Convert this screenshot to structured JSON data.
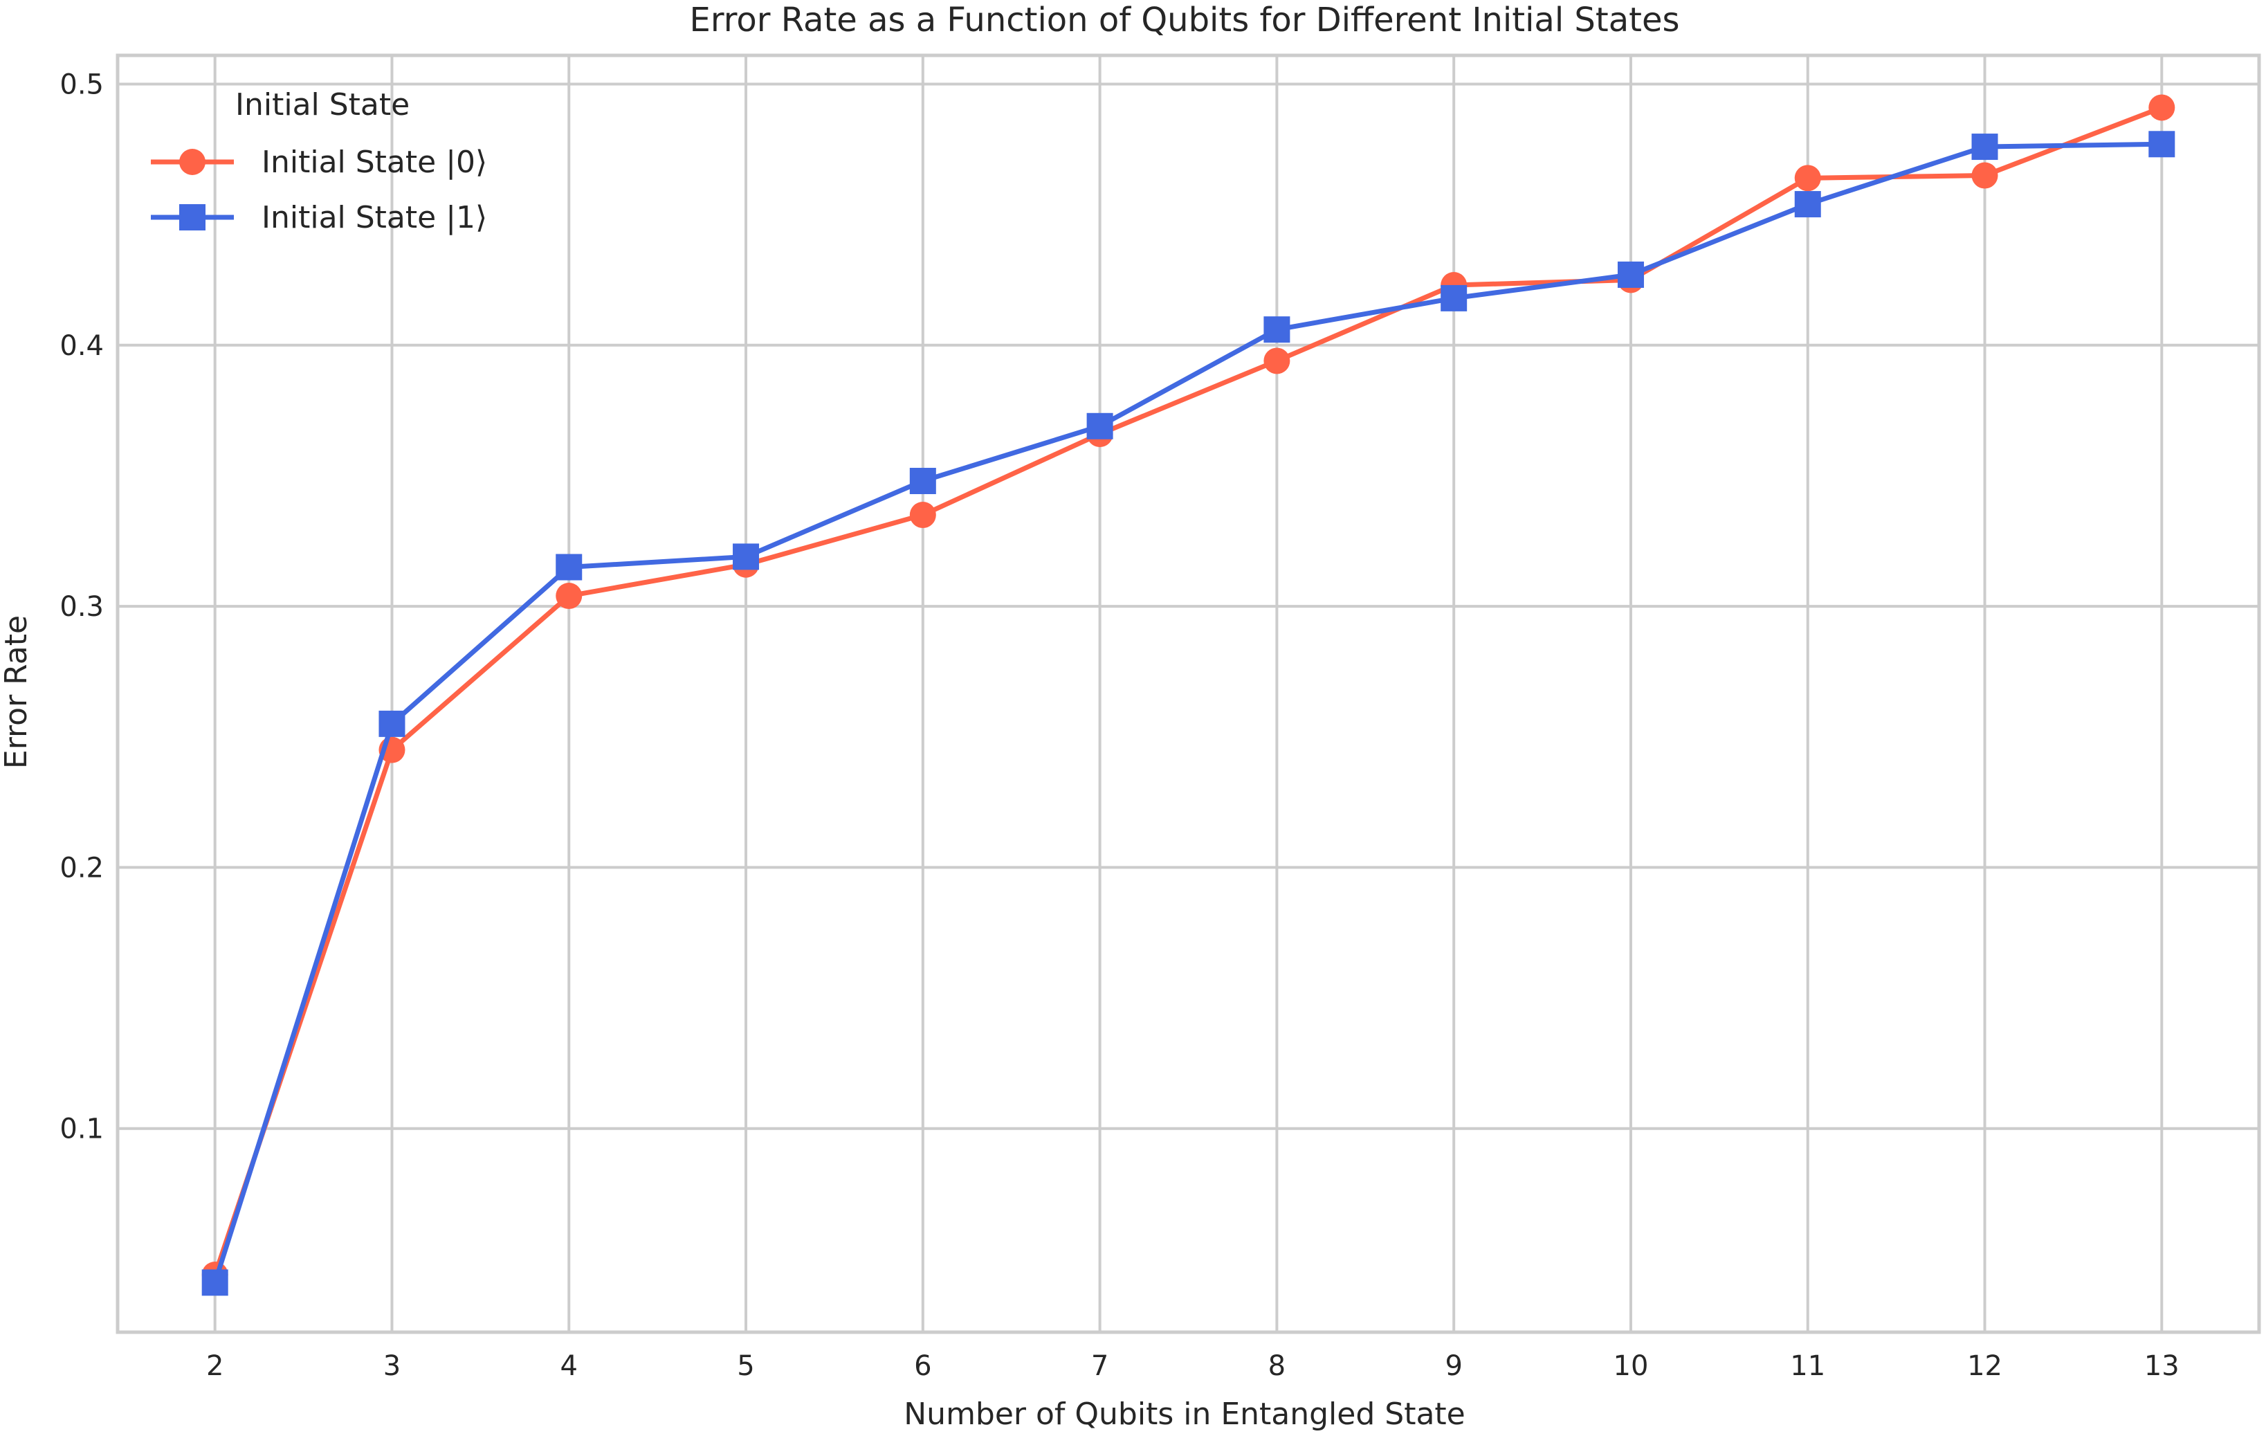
{
  "chart_data": {
    "type": "line",
    "title": "Error Rate as a Function of Qubits for Different Initial States",
    "xlabel": "Number of Qubits in Entangled State",
    "ylabel": "Error Rate",
    "x": [
      2,
      3,
      4,
      5,
      6,
      7,
      8,
      9,
      10,
      11,
      12,
      13
    ],
    "xlim": [
      1.45,
      13.55
    ],
    "ylim": [
      0.022,
      0.511
    ],
    "yticks": [
      0.1,
      0.2,
      0.3,
      0.4,
      0.5
    ],
    "ytick_labels": [
      "0.1",
      "0.2",
      "0.3",
      "0.4",
      "0.5"
    ],
    "xticks": [
      2,
      3,
      4,
      5,
      6,
      7,
      8,
      9,
      10,
      11,
      12,
      13
    ],
    "xtick_labels": [
      "2",
      "3",
      "4",
      "5",
      "6",
      "7",
      "8",
      "9",
      "10",
      "11",
      "12",
      "13"
    ],
    "grid": true,
    "legend": {
      "title": "Initial State",
      "placement": "top-left"
    },
    "series": [
      {
        "name": "Initial State |0⟩",
        "color": "#ff6347",
        "marker": "circle",
        "values": [
          0.044,
          0.245,
          0.304,
          0.316,
          0.335,
          0.366,
          0.394,
          0.423,
          0.425,
          0.464,
          0.465,
          0.491
        ]
      },
      {
        "name": "Initial State |1⟩",
        "color": "#4169e1",
        "marker": "square",
        "values": [
          0.041,
          0.255,
          0.315,
          0.319,
          0.348,
          0.369,
          0.406,
          0.418,
          0.427,
          0.454,
          0.476,
          0.477
        ]
      }
    ]
  }
}
